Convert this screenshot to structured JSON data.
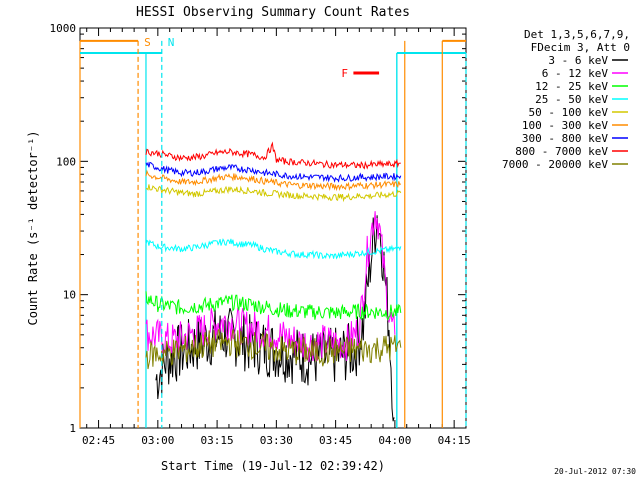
{
  "chart_data": {
    "type": "line",
    "title": "HESSI Observing Summary Count Rates",
    "xlabel": "Start Time (19-Jul-12 02:39:42)",
    "ylabel": "Count Rate (s⁻¹ detector⁻¹)",
    "y_scale": "log",
    "ylim": [
      1,
      1000
    ],
    "x_ticks": [
      "02:45",
      "03:00",
      "03:15",
      "03:30",
      "03:45",
      "04:00",
      "04:15"
    ],
    "x_tick_minutes": [
      -75,
      -60,
      -45,
      -30,
      -15,
      0,
      15
    ],
    "xlim_minutes": [
      -79.7,
      18.0
    ],
    "y_ticks": [
      1,
      10,
      100,
      1000
    ],
    "y_tick_labels": [
      "1",
      "10",
      "100",
      "1000"
    ],
    "grid": false,
    "legend_placement": "right",
    "legend_header": [
      "Det 1,3,5,6,7,9,",
      "FDecim 3, Att 0"
    ],
    "footer_date": "20-Jul-2012 07:30",
    "minutes_note": "x values are minutes relative to 04:00 UT",
    "series": [
      {
        "name": "3 - 6 keV",
        "color": "#000000",
        "x": [
          -60.5,
          -58,
          -55,
          -52,
          -49,
          -46,
          -43,
          -40,
          -37,
          -34,
          -31,
          -28,
          -25,
          -22,
          -19,
          -16,
          -13,
          -10,
          -8,
          -6,
          -4.5,
          -3,
          -1.5,
          -0.2
        ],
        "y": [
          2.3,
          3.2,
          3.6,
          4.0,
          4.4,
          4.8,
          5.0,
          4.7,
          4.3,
          4.1,
          3.9,
          3.7,
          3.5,
          3.4,
          3.3,
          3.4,
          3.6,
          3.8,
          6,
          20,
          40,
          20,
          6,
          1.2
        ]
      },
      {
        "name": "6 - 12 keV",
        "color": "#ff00ff",
        "x": [
          -63,
          -60,
          -57,
          -54,
          -51,
          -48,
          -45,
          -42,
          -39,
          -36,
          -33,
          -30,
          -27,
          -24,
          -21,
          -18,
          -15,
          -12,
          -9,
          -7,
          -5,
          -4,
          -3,
          -1.5,
          0
        ],
        "y": [
          5.2,
          4.8,
          4.5,
          4.7,
          5.2,
          5.5,
          6.2,
          6.3,
          5.8,
          5.6,
          5.4,
          5.1,
          4.7,
          4.4,
          4.3,
          4.4,
          4.3,
          4.4,
          5.5,
          20,
          43,
          33,
          18,
          7,
          5
        ]
      },
      {
        "name": "12 - 25 keV",
        "color": "#00ff00",
        "x": [
          -63,
          -60,
          -57,
          -54,
          -51,
          -48,
          -45,
          -42,
          -39,
          -36,
          -33,
          -30,
          -27,
          -24,
          -21,
          -18,
          -15,
          -12,
          -9,
          -6,
          -3,
          0,
          1.5
        ],
        "y": [
          9.5,
          8.5,
          8.2,
          8.0,
          8.2,
          8.3,
          8.6,
          8.8,
          8.6,
          8.4,
          8.1,
          7.8,
          7.6,
          7.5,
          7.4,
          7.4,
          7.3,
          7.4,
          7.5,
          7.5,
          7.4,
          7.4,
          7.3
        ]
      },
      {
        "name": "25 - 50 keV",
        "color": "#00ffff",
        "x": [
          -63,
          -60,
          -57,
          -54,
          -51,
          -48,
          -45,
          -42,
          -39,
          -36,
          -33,
          -30,
          -27,
          -24,
          -21,
          -18,
          -15,
          -12,
          -9,
          -6,
          -3,
          0,
          1.5
        ],
        "y": [
          25,
          23,
          22.5,
          22,
          22.5,
          23.5,
          24.5,
          25,
          24,
          23.5,
          22,
          21,
          20.5,
          20,
          20,
          19.5,
          19.5,
          20,
          20.5,
          21,
          21.5,
          22,
          23
        ]
      },
      {
        "name": "50 - 100 keV",
        "color": "#d2c800",
        "x": [
          -63,
          -60,
          -57,
          -54,
          -51,
          -48,
          -45,
          -42,
          -39,
          -36,
          -33,
          -30,
          -27,
          -24,
          -21,
          -18,
          -15,
          -12,
          -9,
          -6,
          -3,
          0,
          1.5
        ],
        "y": [
          65,
          62,
          60,
          58,
          57,
          58,
          60,
          62,
          61,
          60,
          58,
          57,
          56,
          55,
          55,
          54,
          54,
          54,
          55,
          55,
          56,
          57,
          58
        ]
      },
      {
        "name": "100 - 300 keV",
        "color": "#ff8c00",
        "x": [
          -63,
          -60,
          -57,
          -54,
          -51,
          -48,
          -45,
          -42,
          -39,
          -36,
          -33,
          -30,
          -27,
          -24,
          -21,
          -18,
          -15,
          -12,
          -9,
          -6,
          -3,
          0,
          1.5
        ],
        "y": [
          80,
          76,
          73,
          70,
          70,
          72,
          75,
          77,
          76,
          74,
          71,
          69,
          67,
          66,
          66,
          65,
          65,
          65,
          66,
          66,
          67,
          67,
          68
        ]
      },
      {
        "name": "300 - 800 keV",
        "color": "#0000ff",
        "x": [
          -63,
          -60,
          -57,
          -54,
          -51,
          -48,
          -45,
          -42,
          -39,
          -36,
          -33,
          -30,
          -27,
          -24,
          -21,
          -18,
          -15,
          -12,
          -9,
          -6,
          -3,
          0,
          1.5
        ],
        "y": [
          95,
          90,
          85,
          82,
          82,
          84,
          88,
          90,
          88,
          86,
          82,
          80,
          78,
          77,
          76,
          76,
          75,
          75,
          76,
          76,
          77,
          77,
          78
        ]
      },
      {
        "name": "800 - 7000 keV",
        "color": "#ff0000",
        "x": [
          -63,
          -60,
          -57,
          -54,
          -51,
          -48,
          -45,
          -42,
          -39,
          -36,
          -33,
          -31,
          -30,
          -28,
          -24,
          -21,
          -18,
          -15,
          -12,
          -9,
          -6,
          -3,
          0,
          1.5
        ],
        "y": [
          118,
          115,
          110,
          106,
          107,
          110,
          116,
          118,
          115,
          112,
          107,
          130,
          103,
          100,
          98,
          97,
          95,
          94,
          94,
          93,
          94,
          95,
          95,
          97
        ]
      },
      {
        "name": "7000 - 20000 keV",
        "color": "#808000",
        "x": [
          -63,
          -60,
          -57,
          -54,
          -51,
          -48,
          -45,
          -42,
          -39,
          -36,
          -33,
          -30,
          -27,
          -24,
          -21,
          -18,
          -15,
          -12,
          -9,
          -6,
          -3,
          0,
          1.5
        ],
        "y": [
          3.5,
          3.6,
          3.7,
          3.8,
          4.0,
          4.2,
          4.3,
          4.4,
          4.3,
          4.2,
          4.0,
          3.9,
          3.8,
          3.8,
          3.7,
          3.7,
          3.8,
          3.8,
          3.9,
          3.9,
          4.0,
          4.0,
          4.0
        ]
      }
    ],
    "markers": [
      {
        "label": "S",
        "color": "#ff8c00",
        "style": "dashed",
        "x": -65
      },
      {
        "label": "N",
        "color": "#00e5ee",
        "style": "dashed",
        "x": -59
      },
      {
        "label": "F",
        "color": "#ff0000",
        "style": "bar",
        "x_start": -10.5,
        "x_end": -4
      }
    ],
    "bands": [
      {
        "color": "#ff8c00",
        "level": 800,
        "x_start": -79.7,
        "x_end": -65,
        "solid_at": [
          -79.7,
          2.5
        ]
      },
      {
        "color": "#00e5ee",
        "level": 650,
        "x_start": -79.7,
        "x_end": -59,
        "solid_at": [
          -63,
          0.5
        ]
      },
      {
        "color": "#ff8c00",
        "level": 800,
        "x_start": 12,
        "x_end": 18
      },
      {
        "color": "#00e5ee",
        "level": 650,
        "x_start": 0.5,
        "x_end": 18
      }
    ]
  }
}
